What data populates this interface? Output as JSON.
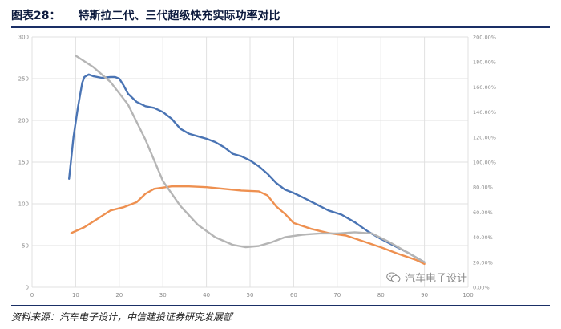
{
  "figure": {
    "number": "图表28：",
    "title": "特斯拉二代、三代超级快充实际功率对比"
  },
  "source": "资料来源：汽车电子设计，中信建投证券研究发展部",
  "watermark": {
    "text": "汽车电子设计",
    "icon": "wechat-icon"
  },
  "chart_data": {
    "type": "line",
    "title": "",
    "xlabel": "",
    "ylabel": "",
    "xlim": [
      0,
      100
    ],
    "ylim": [
      0,
      300
    ],
    "y2lim": [
      0,
      200
    ],
    "x_ticks": [
      "0",
      "10",
      "20",
      "30",
      "40",
      "50",
      "60",
      "70",
      "80",
      "90",
      "100"
    ],
    "y_ticks": [
      "0",
      "50",
      "100",
      "150",
      "200",
      "250",
      "300"
    ],
    "y2_ticks": [
      "0.00%",
      "20.00%",
      "40.00%",
      "60.00%",
      "80.00%",
      "100.00%",
      "120.00%",
      "140.00%",
      "160.00%",
      "180.00%",
      "200.00%"
    ],
    "grid": true,
    "legend": "none",
    "series": [
      {
        "axis": "left",
        "color": "#4a74b4",
        "x": [
          8.5,
          9.5,
          10.5,
          11.5,
          12,
          13,
          14,
          16,
          18,
          19,
          20,
          21,
          22,
          24,
          26,
          28,
          30,
          32,
          34,
          36,
          38,
          40,
          42,
          44,
          46,
          48,
          50,
          52,
          54,
          56,
          58,
          60,
          62,
          65,
          68,
          71,
          74,
          77,
          80,
          83,
          86,
          90
        ],
        "y": [
          130,
          180,
          215,
          245,
          252,
          255,
          253,
          251,
          252,
          252,
          250,
          242,
          232,
          222,
          217,
          215,
          210,
          202,
          190,
          184,
          181,
          178,
          174,
          168,
          160,
          157,
          152,
          145,
          136,
          125,
          117,
          113,
          108,
          100,
          92,
          87,
          78,
          67,
          58,
          50,
          42,
          30
        ]
      },
      {
        "axis": "left",
        "color": "#ee9050",
        "x": [
          9,
          12,
          15,
          18,
          21,
          24,
          26,
          28,
          32,
          36,
          40,
          44,
          48,
          52,
          54,
          56,
          58,
          60,
          64,
          68,
          72,
          76,
          80,
          84,
          88,
          90
        ],
        "y": [
          65,
          72,
          82,
          92,
          96,
          102,
          112,
          118,
          121,
          121,
          120,
          118,
          116,
          115,
          110,
          97,
          88,
          77,
          70,
          65,
          62,
          55,
          48,
          40,
          33,
          28
        ]
      },
      {
        "axis": "right",
        "color": "#b5b5b5",
        "x": [
          10,
          14,
          18,
          22,
          26,
          30,
          34,
          38,
          42,
          46,
          49,
          52,
          55,
          58,
          62,
          66,
          70,
          74,
          78,
          82,
          86,
          90
        ],
        "y": [
          185,
          176,
          164,
          146,
          118,
          85,
          65,
          50,
          40,
          34,
          32,
          33,
          36,
          40,
          42,
          43,
          43,
          44,
          43,
          36,
          28,
          20
        ]
      }
    ]
  }
}
